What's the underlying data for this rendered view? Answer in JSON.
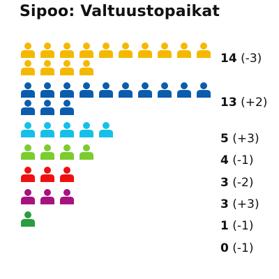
{
  "chart_data": {
    "type": "pictogram",
    "title": "Sipoo: Valtuustopaikat",
    "rows": [
      {
        "seats": 14,
        "change": "(-3)",
        "color": "#f5b800"
      },
      {
        "seats": 13,
        "change": "(+2)",
        "color": "#0b5cad"
      },
      {
        "seats": 5,
        "change": "(+3)",
        "color": "#14c0e8"
      },
      {
        "seats": 4,
        "change": "(-1)",
        "color": "#7ccc2e"
      },
      {
        "seats": 3,
        "change": "(-2)",
        "color": "#ee1111"
      },
      {
        "seats": 3,
        "change": "(+3)",
        "color": "#a8127e"
      },
      {
        "seats": 1,
        "change": "(-1)",
        "color": "#2a9d3e"
      },
      {
        "seats": 0,
        "change": "(-1)",
        "color": "#000000"
      }
    ]
  }
}
